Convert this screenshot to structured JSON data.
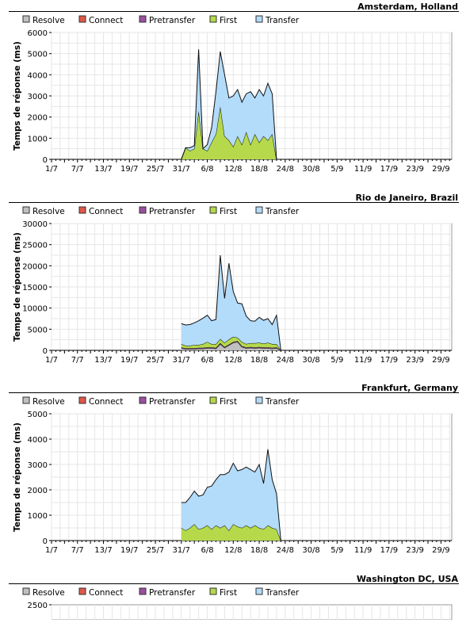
{
  "legend": [
    {
      "label": "Resolve",
      "color": "#c0c0c0"
    },
    {
      "label": "Connect",
      "color": "#e0584a"
    },
    {
      "label": "Pretransfer",
      "color": "#9b4fa0"
    },
    {
      "label": "First",
      "color": "#b5d94a"
    },
    {
      "label": "Transfer",
      "color": "#b3dbfa"
    }
  ],
  "colors": {
    "grid": "#e6e6e6",
    "outline": "#111111"
  },
  "chart_data": [
    {
      "type": "area",
      "title": "Amsterdam, Holland",
      "ylabel": "Temps de réponse (ms)",
      "ylim": [
        0,
        6000
      ],
      "yticks": [
        0,
        1000,
        2000,
        3000,
        4000,
        5000,
        6000
      ],
      "xticks": [
        "1/7",
        "7/7",
        "13/7",
        "19/7",
        "25/7",
        "31/7",
        "6/8",
        "12/8",
        "18/8",
        "24/8",
        "30/8",
        "5/9",
        "11/9",
        "17/9",
        "23/9",
        "29/9"
      ],
      "stacked": true,
      "x": [
        "31/7",
        "1/8",
        "2/8",
        "3/8",
        "4/8",
        "5/8",
        "6/8",
        "7/8",
        "8/8",
        "9/8",
        "10/8",
        "11/8",
        "12/8",
        "13/8",
        "14/8",
        "15/8",
        "16/8",
        "17/8",
        "18/8",
        "19/8",
        "20/8",
        "21/8",
        "22/8"
      ],
      "series": [
        {
          "name": "Resolve",
          "values": [
            0,
            0,
            0,
            0,
            0,
            0,
            0,
            0,
            0,
            0,
            0,
            0,
            0,
            0,
            0,
            0,
            0,
            0,
            0,
            0,
            0,
            0,
            0
          ]
        },
        {
          "name": "Connect",
          "values": [
            0,
            0,
            0,
            0,
            0,
            0,
            0,
            0,
            0,
            0,
            0,
            0,
            0,
            0,
            0,
            0,
            0,
            0,
            0,
            0,
            0,
            0,
            0
          ]
        },
        {
          "name": "Pretransfer",
          "values": [
            0,
            0,
            0,
            0,
            0,
            0,
            0,
            0,
            0,
            0,
            0,
            0,
            0,
            0,
            0,
            0,
            0,
            0,
            0,
            0,
            0,
            0,
            0
          ]
        },
        {
          "name": "First",
          "values": [
            0,
            550,
            400,
            500,
            2300,
            500,
            400,
            800,
            1200,
            2500,
            1100,
            900,
            600,
            1100,
            700,
            1300,
            700,
            1200,
            800,
            1100,
            900,
            1200,
            0
          ]
        },
        {
          "name": "Transfer",
          "values": [
            0,
            0,
            150,
            150,
            2900,
            0,
            300,
            700,
            2000,
            2600,
            2900,
            2000,
            2400,
            2200,
            2000,
            1800,
            2500,
            1700,
            2500,
            1900,
            2700,
            1900,
            0
          ]
        }
      ]
    },
    {
      "type": "area",
      "title": "Rio de Janeiro, Brazil",
      "ylabel": "Temps de réponse (ms)",
      "ylim": [
        0,
        30000
      ],
      "yticks": [
        0,
        5000,
        10000,
        15000,
        20000,
        25000,
        30000
      ],
      "xticks": [
        "1/7",
        "7/7",
        "13/7",
        "19/7",
        "25/7",
        "31/7",
        "6/8",
        "12/8",
        "18/8",
        "24/8",
        "30/8",
        "5/9",
        "11/9",
        "17/9",
        "23/9",
        "29/9"
      ],
      "stacked": true,
      "x": [
        "31/7",
        "1/8",
        "2/8",
        "3/8",
        "4/8",
        "5/8",
        "6/8",
        "7/8",
        "8/8",
        "9/8",
        "10/8",
        "11/8",
        "12/8",
        "13/8",
        "14/8",
        "15/8",
        "16/8",
        "17/8",
        "18/8",
        "19/8",
        "20/8",
        "21/8",
        "22/8",
        "23/8"
      ],
      "series": [
        {
          "name": "Resolve",
          "values": [
            500,
            300,
            300,
            300,
            400,
            400,
            500,
            500,
            400,
            1500,
            600,
            1200,
            1800,
            2000,
            800,
            500,
            600,
            500,
            600,
            500,
            500,
            400,
            500,
            0
          ]
        },
        {
          "name": "Connect",
          "values": [
            0,
            0,
            0,
            0,
            0,
            0,
            0,
            0,
            0,
            0,
            0,
            0,
            0,
            0,
            0,
            0,
            0,
            0,
            0,
            0,
            0,
            0,
            0,
            0
          ]
        },
        {
          "name": "Pretransfer",
          "values": [
            200,
            200,
            200,
            200,
            200,
            200,
            200,
            200,
            200,
            200,
            200,
            200,
            200,
            200,
            200,
            200,
            200,
            200,
            200,
            200,
            200,
            200,
            200,
            0
          ]
        },
        {
          "name": "First",
          "values": [
            800,
            600,
            600,
            800,
            700,
            900,
            1300,
            800,
            900,
            1000,
            1000,
            1200,
            1200,
            800,
            1000,
            800,
            900,
            1000,
            1000,
            900,
            1100,
            900,
            800,
            0
          ]
        },
        {
          "name": "Transfer",
          "values": [
            4800,
            4900,
            5000,
            5200,
            5700,
            6100,
            6300,
            5500,
            5800,
            19800,
            10500,
            18000,
            10700,
            8200,
            9000,
            6600,
            5300,
            5200,
            6000,
            5500,
            5700,
            4600,
            6800,
            0
          ]
        }
      ]
    },
    {
      "type": "area",
      "title": "Frankfurt, Germany",
      "ylabel": "Temps de réponse (ms)",
      "ylim": [
        0,
        5000
      ],
      "yticks": [
        0,
        1000,
        2000,
        3000,
        4000,
        5000
      ],
      "xticks": [
        "1/7",
        "7/7",
        "13/7",
        "19/7",
        "25/7",
        "31/7",
        "6/8",
        "12/8",
        "18/8",
        "24/8",
        "30/8",
        "5/9",
        "11/9",
        "17/9",
        "23/9",
        "29/9"
      ],
      "stacked": true,
      "x": [
        "31/7",
        "1/8",
        "2/8",
        "3/8",
        "4/8",
        "5/8",
        "6/8",
        "7/8",
        "8/8",
        "9/8",
        "10/8",
        "11/8",
        "12/8",
        "13/8",
        "14/8",
        "15/8",
        "16/8",
        "17/8",
        "18/8",
        "19/8",
        "20/8",
        "21/8",
        "22/8",
        "23/8"
      ],
      "series": [
        {
          "name": "Resolve",
          "values": [
            0,
            0,
            0,
            0,
            0,
            0,
            0,
            0,
            0,
            0,
            0,
            0,
            0,
            0,
            0,
            0,
            0,
            0,
            0,
            0,
            0,
            0,
            0,
            0
          ]
        },
        {
          "name": "Connect",
          "values": [
            0,
            0,
            0,
            0,
            0,
            0,
            0,
            0,
            0,
            0,
            0,
            0,
            0,
            0,
            0,
            0,
            0,
            0,
            0,
            0,
            0,
            0,
            0,
            0
          ]
        },
        {
          "name": "Pretransfer",
          "values": [
            0,
            0,
            0,
            0,
            0,
            0,
            0,
            0,
            0,
            0,
            0,
            0,
            0,
            0,
            0,
            0,
            0,
            0,
            0,
            0,
            0,
            0,
            0,
            0
          ]
        },
        {
          "name": "First",
          "values": [
            500,
            400,
            500,
            650,
            450,
            500,
            600,
            450,
            600,
            500,
            600,
            400,
            650,
            550,
            500,
            600,
            500,
            600,
            500,
            450,
            600,
            500,
            450,
            0
          ]
        },
        {
          "name": "Transfer",
          "values": [
            1000,
            1100,
            1200,
            1300,
            1300,
            1300,
            1500,
            1700,
            1800,
            2100,
            2000,
            2300,
            2400,
            2200,
            2300,
            2300,
            2300,
            2100,
            2500,
            1800,
            3000,
            1900,
            1400,
            0
          ]
        }
      ]
    },
    {
      "type": "area",
      "title": "Washington DC, USA",
      "ylabel": "",
      "ylim": [
        0,
        2500
      ],
      "yticks": [
        2500
      ],
      "xticks": [],
      "stacked": true,
      "x": [],
      "series": []
    }
  ]
}
